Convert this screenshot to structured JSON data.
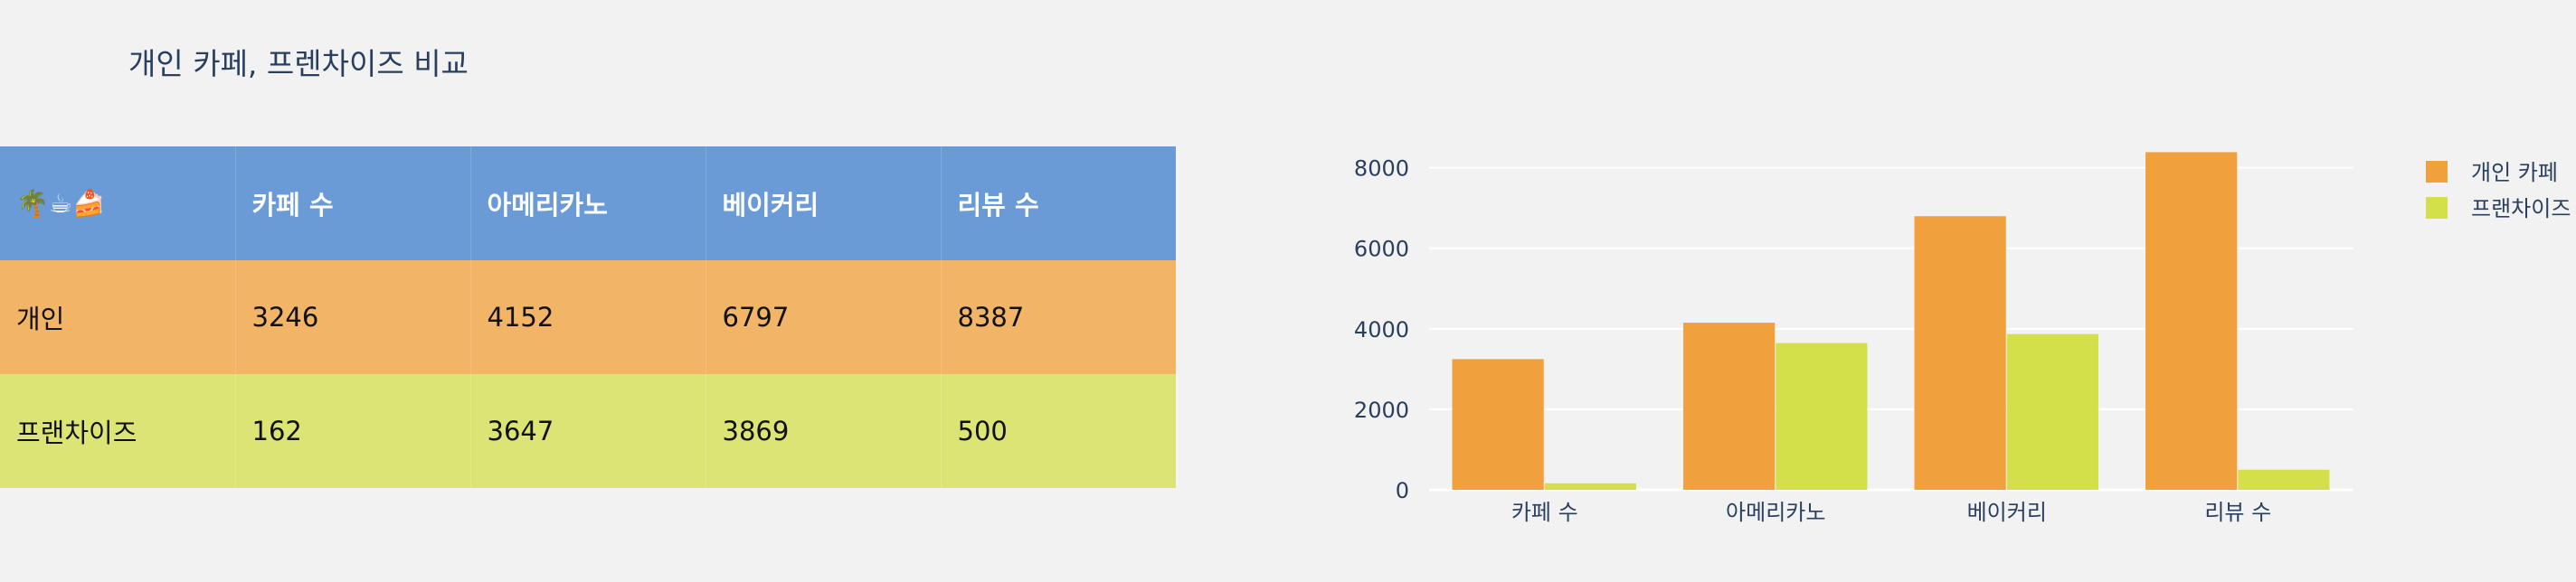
{
  "title": "개인 카페, 프렌차이즈 비교",
  "colors": {
    "header_bg": "#6b9bd6",
    "row1_bg": "#f2b466",
    "row2_bg": "#dce476",
    "series1": "#f0a03c",
    "series2": "#d4e04a"
  },
  "table": {
    "header": [
      "🌴☕🍰",
      "카페 수",
      "아메리카노",
      "베이커리",
      "리뷰 수"
    ],
    "rows": [
      [
        "개인",
        "3246",
        "4152",
        "6797",
        "8387"
      ],
      [
        "프랜차이즈",
        "162",
        "3647",
        "3869",
        "500"
      ]
    ]
  },
  "chart_data": {
    "type": "bar",
    "categories": [
      "카페 수",
      "아메리카노",
      "베이커리",
      "리뷰 수"
    ],
    "series": [
      {
        "name": "개인 카페",
        "values": [
          3246,
          4152,
          6797,
          8387
        ]
      },
      {
        "name": "프랜차이즈",
        "values": [
          162,
          3647,
          3869,
          500
        ]
      }
    ],
    "ylim": [
      0,
      8800
    ],
    "yticks": [
      "0",
      "2000",
      "4000",
      "6000",
      "8000"
    ],
    "grid": true,
    "legend_position": "top-right"
  }
}
